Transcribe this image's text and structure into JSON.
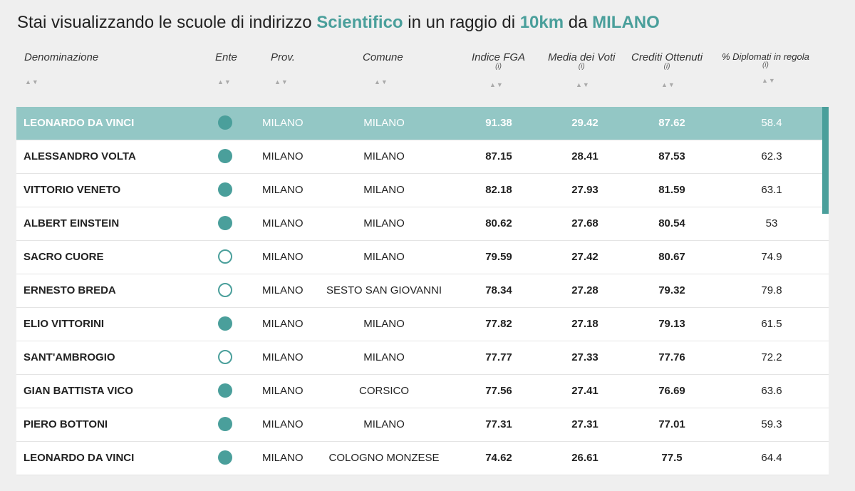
{
  "title": {
    "prefix": "Stai visualizzando le scuole di indirizzo",
    "indirizzo": "Scientifico",
    "middle": "in un raggio di",
    "raggio": "10km",
    "da": "da",
    "citta": "MILANO"
  },
  "columns": {
    "denominazione": "Denominazione",
    "ente": "Ente",
    "prov": "Prov.",
    "comune": "Comune",
    "indice_fga": "Indice FGA",
    "media_voti": "Media dei Voti",
    "crediti": "Crediti Ottenuti",
    "diplomati": "% Diplomati in regola",
    "info": "(i)",
    "sort": "▲▼"
  },
  "colors": {
    "accent": "#4a9f9b",
    "selected_row": "#93c7c5"
  },
  "rows": [
    {
      "name": "LEONARDO DA VINCI",
      "ente": "filled",
      "prov": "MILANO",
      "comune": "MILANO",
      "fga": "91.38",
      "voti": "29.42",
      "crediti": "87.62",
      "diplomati": "58.4",
      "selected": true
    },
    {
      "name": "ALESSANDRO VOLTA",
      "ente": "filled",
      "prov": "MILANO",
      "comune": "MILANO",
      "fga": "87.15",
      "voti": "28.41",
      "crediti": "87.53",
      "diplomati": "62.3"
    },
    {
      "name": "VITTORIO VENETO",
      "ente": "filled",
      "prov": "MILANO",
      "comune": "MILANO",
      "fga": "82.18",
      "voti": "27.93",
      "crediti": "81.59",
      "diplomati": "63.1"
    },
    {
      "name": "ALBERT EINSTEIN",
      "ente": "filled",
      "prov": "MILANO",
      "comune": "MILANO",
      "fga": "80.62",
      "voti": "27.68",
      "crediti": "80.54",
      "diplomati": "53"
    },
    {
      "name": "SACRO CUORE",
      "ente": "hollow",
      "prov": "MILANO",
      "comune": "MILANO",
      "fga": "79.59",
      "voti": "27.42",
      "crediti": "80.67",
      "diplomati": "74.9"
    },
    {
      "name": "ERNESTO BREDA",
      "ente": "hollow",
      "prov": "MILANO",
      "comune": "SESTO SAN GIOVANNI",
      "fga": "78.34",
      "voti": "27.28",
      "crediti": "79.32",
      "diplomati": "79.8"
    },
    {
      "name": "ELIO VITTORINI",
      "ente": "filled",
      "prov": "MILANO",
      "comune": "MILANO",
      "fga": "77.82",
      "voti": "27.18",
      "crediti": "79.13",
      "diplomati": "61.5"
    },
    {
      "name": "SANT'AMBROGIO",
      "ente": "hollow",
      "prov": "MILANO",
      "comune": "MILANO",
      "fga": "77.77",
      "voti": "27.33",
      "crediti": "77.76",
      "diplomati": "72.2"
    },
    {
      "name": "GIAN BATTISTA VICO",
      "ente": "filled",
      "prov": "MILANO",
      "comune": "CORSICO",
      "fga": "77.56",
      "voti": "27.41",
      "crediti": "76.69",
      "diplomati": "63.6"
    },
    {
      "name": "PIERO BOTTONI",
      "ente": "filled",
      "prov": "MILANO",
      "comune": "MILANO",
      "fga": "77.31",
      "voti": "27.31",
      "crediti": "77.01",
      "diplomati": "59.3"
    },
    {
      "name": "LEONARDO DA VINCI",
      "ente": "filled",
      "prov": "MILANO",
      "comune": "COLOGNO MONZESE",
      "fga": "74.62",
      "voti": "26.61",
      "crediti": "77.5",
      "diplomati": "64.4"
    }
  ]
}
